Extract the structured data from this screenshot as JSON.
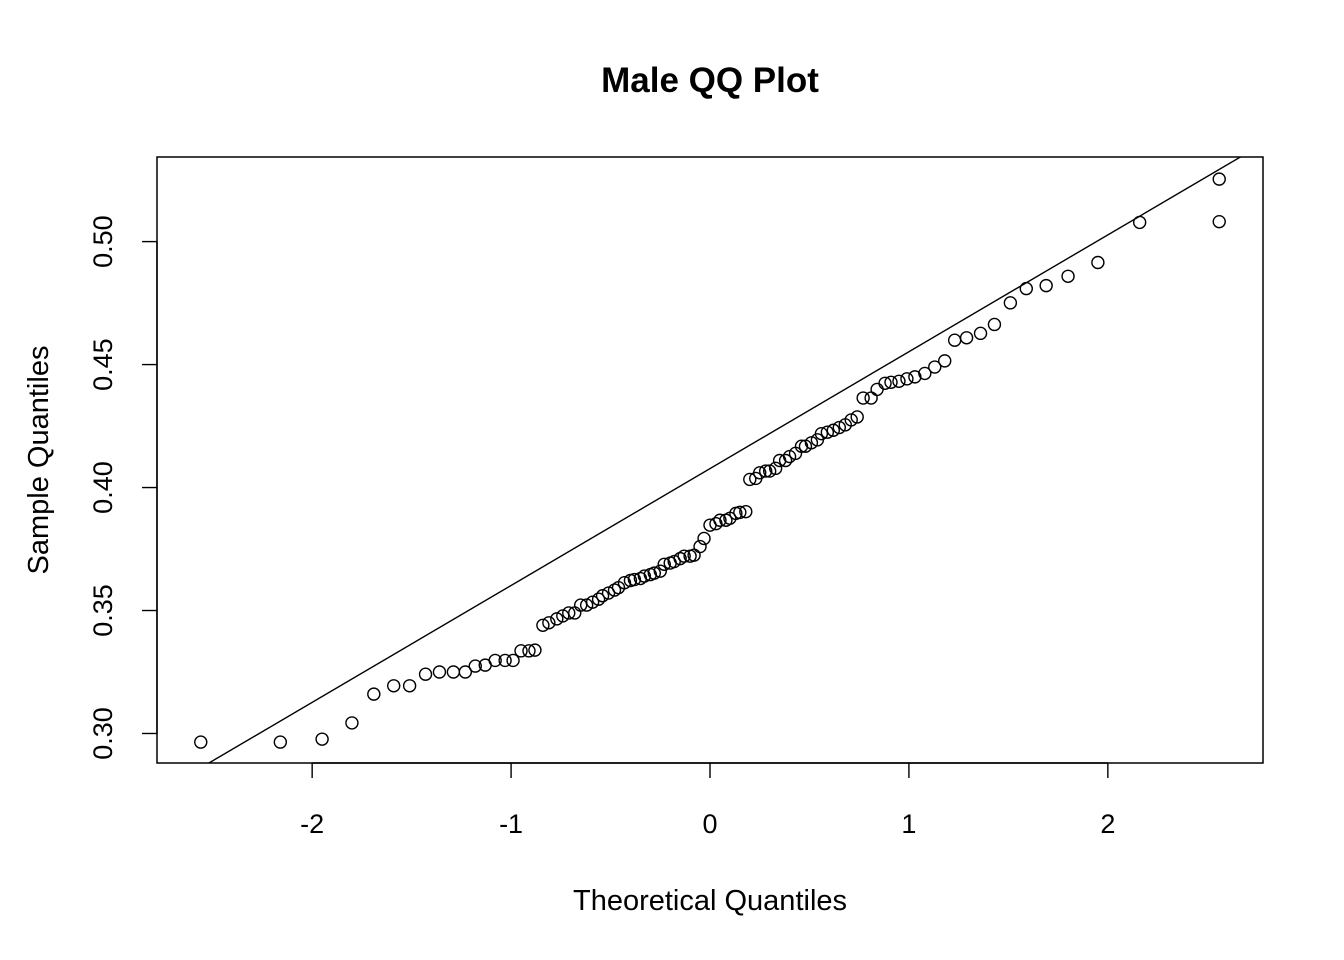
{
  "chart_data": {
    "type": "scatter",
    "title": "Male QQ Plot",
    "xlabel": "Theoretical Quantiles",
    "ylabel": "Sample Quantiles",
    "xlim": [
      -2.78,
      2.78
    ],
    "ylim": [
      0.288,
      0.5344
    ],
    "x_ticks": [
      -2,
      -1,
      0,
      1,
      2
    ],
    "x_tick_labels": [
      "-2",
      "-1",
      "0",
      "1",
      "2"
    ],
    "y_ticks": [
      0.3,
      0.35,
      0.4,
      0.45,
      0.5
    ],
    "y_tick_labels": [
      "0.30",
      "0.35",
      "0.40",
      "0.45",
      "0.50"
    ],
    "grid": false,
    "legend": "none",
    "marker": "open-circle",
    "reference_line": {
      "x1": -2.78,
      "y1": 0.2756,
      "x2": 2.78,
      "y2": 0.5398
    },
    "points": [
      [
        -2.56,
        0.2965
      ],
      [
        -2.16,
        0.2965
      ],
      [
        -1.95,
        0.2977
      ],
      [
        -1.8,
        0.3043
      ],
      [
        -1.69,
        0.316
      ],
      [
        -1.59,
        0.3194
      ],
      [
        -1.51,
        0.3194
      ],
      [
        -1.43,
        0.3241
      ],
      [
        -1.36,
        0.325
      ],
      [
        -1.29,
        0.325
      ],
      [
        -1.23,
        0.325
      ],
      [
        -1.18,
        0.3274
      ],
      [
        -1.13,
        0.3278
      ],
      [
        -1.08,
        0.3297
      ],
      [
        -1.03,
        0.3297
      ],
      [
        -0.99,
        0.3297
      ],
      [
        -0.95,
        0.3336
      ],
      [
        -0.91,
        0.3336
      ],
      [
        -0.88,
        0.3339
      ],
      [
        -0.84,
        0.344
      ],
      [
        -0.81,
        0.345
      ],
      [
        -0.77,
        0.3466
      ],
      [
        -0.74,
        0.3478
      ],
      [
        -0.71,
        0.349
      ],
      [
        -0.68,
        0.349
      ],
      [
        -0.65,
        0.3522
      ],
      [
        -0.62,
        0.3522
      ],
      [
        -0.59,
        0.3534
      ],
      [
        -0.56,
        0.3546
      ],
      [
        -0.54,
        0.356
      ],
      [
        -0.51,
        0.3571
      ],
      [
        -0.48,
        0.3583
      ],
      [
        -0.46,
        0.3593
      ],
      [
        -0.43,
        0.3613
      ],
      [
        -0.4,
        0.3622
      ],
      [
        -0.38,
        0.3626
      ],
      [
        -0.35,
        0.363
      ],
      [
        -0.33,
        0.364
      ],
      [
        -0.3,
        0.3646
      ],
      [
        -0.28,
        0.3652
      ],
      [
        -0.25,
        0.366
      ],
      [
        -0.23,
        0.3688
      ],
      [
        -0.2,
        0.3693
      ],
      [
        -0.18,
        0.3699
      ],
      [
        -0.15,
        0.3711
      ],
      [
        -0.13,
        0.3721
      ],
      [
        -0.1,
        0.3721
      ],
      [
        -0.08,
        0.3725
      ],
      [
        -0.05,
        0.376
      ],
      [
        -0.03,
        0.3793
      ],
      [
        0.0,
        0.3847
      ],
      [
        0.03,
        0.3853
      ],
      [
        0.05,
        0.3867
      ],
      [
        0.08,
        0.3867
      ],
      [
        0.1,
        0.3875
      ],
      [
        0.13,
        0.3895
      ],
      [
        0.15,
        0.3899
      ],
      [
        0.18,
        0.3902
      ],
      [
        0.2,
        0.4033
      ],
      [
        0.23,
        0.4037
      ],
      [
        0.25,
        0.406
      ],
      [
        0.28,
        0.4067
      ],
      [
        0.3,
        0.4067
      ],
      [
        0.33,
        0.4078
      ],
      [
        0.35,
        0.411
      ],
      [
        0.38,
        0.411
      ],
      [
        0.4,
        0.4126
      ],
      [
        0.43,
        0.4139
      ],
      [
        0.46,
        0.4168
      ],
      [
        0.48,
        0.4168
      ],
      [
        0.51,
        0.4182
      ],
      [
        0.54,
        0.4194
      ],
      [
        0.56,
        0.4219
      ],
      [
        0.59,
        0.4225
      ],
      [
        0.62,
        0.4233
      ],
      [
        0.65,
        0.4244
      ],
      [
        0.68,
        0.4255
      ],
      [
        0.71,
        0.4275
      ],
      [
        0.74,
        0.4287
      ],
      [
        0.77,
        0.4364
      ],
      [
        0.81,
        0.4364
      ],
      [
        0.84,
        0.4399
      ],
      [
        0.88,
        0.4424
      ],
      [
        0.91,
        0.4428
      ],
      [
        0.95,
        0.4432
      ],
      [
        0.99,
        0.4442
      ],
      [
        1.03,
        0.445
      ],
      [
        1.08,
        0.4464
      ],
      [
        1.13,
        0.449
      ],
      [
        1.18,
        0.4515
      ],
      [
        1.23,
        0.4599
      ],
      [
        1.29,
        0.4609
      ],
      [
        1.36,
        0.4627
      ],
      [
        1.43,
        0.4663
      ],
      [
        1.51,
        0.4751
      ],
      [
        1.59,
        0.4809
      ],
      [
        1.69,
        0.4821
      ],
      [
        1.8,
        0.4859
      ],
      [
        1.95,
        0.4915
      ],
      [
        2.16,
        0.5078
      ],
      [
        2.56,
        0.5081
      ],
      [
        2.56,
        0.5254
      ]
    ]
  }
}
